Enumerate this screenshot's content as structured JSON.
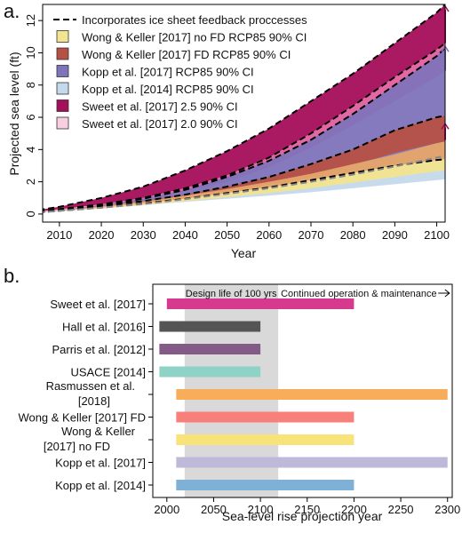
{
  "chart_data": [
    {
      "panel_label": "a.",
      "type": "area",
      "xlabel": "Year",
      "ylabel": "Projected sea level (ft)",
      "xlim": [
        2006,
        2102
      ],
      "ylim": [
        -0.5,
        13
      ],
      "xticks": [
        2010,
        2020,
        2030,
        2040,
        2050,
        2060,
        2070,
        2080,
        2090,
        2100
      ],
      "yticks": [
        0,
        2,
        4,
        6,
        8,
        10,
        12
      ],
      "grid": false,
      "legend_position": "top-left",
      "x": [
        2005,
        2010,
        2020,
        2030,
        2040,
        2050,
        2060,
        2070,
        2080,
        2090,
        2100,
        2102
      ],
      "series": [
        {
          "name": "Sweet et al. [2017] 2.5 90% CI",
          "color": "#a50e5a",
          "lower": [
            0.15,
            0.3,
            0.6,
            1.0,
            1.6,
            2.4,
            3.5,
            5.0,
            6.7,
            8.5,
            10.2,
            10.6
          ],
          "upper": [
            0.25,
            0.45,
            1.0,
            1.7,
            2.7,
            3.9,
            5.3,
            7.0,
            8.7,
            10.6,
            12.5,
            13.0
          ]
        },
        {
          "name": "Sweet et al. [2017] 2.0 90% CI",
          "color": "#e0609e",
          "lower": [
            0.15,
            0.28,
            0.55,
            0.9,
            1.4,
            2.0,
            2.9,
            4.1,
            5.5,
            7.0,
            8.5,
            8.9
          ],
          "upper": [
            0.15,
            0.3,
            0.6,
            1.0,
            1.6,
            2.4,
            3.5,
            5.0,
            6.7,
            8.5,
            10.2,
            10.6
          ]
        },
        {
          "name": "Kopp et al. [2017] RCP85 90% CI",
          "color": "#7f73ba",
          "lower": [
            0.1,
            0.18,
            0.35,
            0.55,
            0.8,
            1.1,
            1.4,
            1.75,
            2.1,
            2.5,
            2.9,
            3.0
          ],
          "upper": [
            0.12,
            0.25,
            0.55,
            0.95,
            1.5,
            2.3,
            3.3,
            4.6,
            6.2,
            8.0,
            9.8,
            10.3
          ]
        },
        {
          "name": "Wong & Keller [2017] FD RCP85 90% CI",
          "color": "#b55144",
          "lower": [
            0.1,
            0.2,
            0.4,
            0.65,
            0.95,
            1.3,
            1.7,
            2.3,
            3.0,
            3.8,
            4.4,
            4.5
          ],
          "upper": [
            0.1,
            0.22,
            0.5,
            0.8,
            1.2,
            1.7,
            2.3,
            3.1,
            4.0,
            5.2,
            6.0,
            6.1
          ]
        },
        {
          "name": "Kopp et al. [2014] RCP85 90% CI",
          "color": "#c5d9ec",
          "lower": [
            0.1,
            0.18,
            0.35,
            0.55,
            0.75,
            0.95,
            1.15,
            1.35,
            1.6,
            1.85,
            2.1,
            2.15
          ],
          "upper": [
            0.12,
            0.22,
            0.45,
            0.75,
            1.05,
            1.4,
            1.8,
            2.2,
            2.6,
            3.0,
            3.4,
            3.5
          ]
        },
        {
          "name": "Wong & Keller [2017] no FD RCP85 90% CI",
          "color": "#f3e48f",
          "lower": [
            0.1,
            0.18,
            0.35,
            0.55,
            0.8,
            1.05,
            1.3,
            1.6,
            1.95,
            2.3,
            2.65,
            2.7
          ],
          "upper": [
            0.1,
            0.2,
            0.4,
            0.65,
            0.95,
            1.3,
            1.7,
            2.1,
            2.55,
            3.0,
            3.3,
            3.4
          ]
        },
        {
          "name": "Wong & Keller [2017] no FD RCP85 90% CI",
          "color": "#e6a66a",
          "lower": [
            0.1,
            0.2,
            0.4,
            0.65,
            0.95,
            1.3,
            1.65,
            2.1,
            2.55,
            3.0,
            3.35,
            3.4
          ],
          "upper": [
            0.1,
            0.22,
            0.48,
            0.78,
            1.15,
            1.55,
            2.0,
            2.5,
            3.1,
            3.7,
            4.4,
            4.5
          ],
          "legend": false
        }
      ],
      "feedback_lines": [
        {
          "name": "Incorporates ice sheet feedback proccesses",
          "color": "#000000",
          "values": [
            0.25,
            0.45,
            1.0,
            1.7,
            2.7,
            3.9,
            5.3,
            7.0,
            8.7,
            10.6,
            12.5,
            13.0
          ]
        },
        {
          "color": "#000000",
          "values": [
            0.15,
            0.3,
            0.6,
            1.0,
            1.6,
            2.4,
            3.5,
            5.0,
            6.7,
            8.5,
            10.2,
            10.6
          ]
        },
        {
          "color": "#000000",
          "values": [
            0.12,
            0.25,
            0.55,
            0.95,
            1.5,
            2.3,
            3.3,
            4.6,
            6.2,
            8.0,
            9.8,
            10.3
          ]
        },
        {
          "color": "#000000",
          "values": [
            0.1,
            0.22,
            0.5,
            0.8,
            1.2,
            1.7,
            2.3,
            3.1,
            4.0,
            5.2,
            6.0,
            6.1
          ]
        },
        {
          "color": "#000000",
          "values": [
            0.1,
            0.2,
            0.4,
            0.65,
            0.95,
            1.3,
            1.65,
            2.1,
            2.55,
            3.0,
            3.35,
            3.4
          ]
        },
        {
          "color": "#888888",
          "values": [
            0.1,
            0.2,
            0.4,
            0.62,
            0.92,
            1.25,
            1.6,
            2.0,
            2.45,
            2.95,
            3.5,
            3.6
          ]
        }
      ],
      "arrows": [
        {
          "x": 2102,
          "from": 10.6,
          "to": 12.9,
          "color": "#a50e5a"
        },
        {
          "x": 2102,
          "from": 8.9,
          "to": 10.4,
          "color": "#7f73ba"
        },
        {
          "x": 2102,
          "from": 4.6,
          "to": 5.6,
          "color": "#a50e5a"
        }
      ],
      "legend": [
        {
          "label": "Incorporates ice sheet feedback proccesses",
          "kind": "dash"
        },
        {
          "label": "Wong & Keller [2017] no FD RCP85 90% CI",
          "color": "#f3e48f"
        },
        {
          "label": "Wong & Keller [2017] FD RCP85 90% CI",
          "color": "#b55144"
        },
        {
          "label": "Kopp et al. [2017] RCP85 90% CI",
          "color": "#7f73ba"
        },
        {
          "label": "Kopp et al. [2014] RCP85 90% CI",
          "color": "#c5d9ec"
        },
        {
          "label": "Sweet et al. [2017] 2.5 90% CI",
          "color": "#a50e5a"
        },
        {
          "label": "Sweet et al. [2017] 2.0 90% CI",
          "color": "#f7cfe0"
        }
      ]
    },
    {
      "panel_label": "b.",
      "type": "bar",
      "orientation": "horizontal",
      "xlabel": "Sea-level rise projection year",
      "xlim": [
        1985,
        2305
      ],
      "xticks": [
        2000,
        2050,
        2100,
        2150,
        2200,
        2250,
        2300
      ],
      "shade_range": [
        2019,
        2119
      ],
      "shade_color": "#d9d9d9",
      "annotations": {
        "design_life": "Design life of 100 yrs",
        "continued": "Continued operation & maintenance"
      },
      "categories": [
        [
          "Sweet et al. [2017]"
        ],
        [
          "Hall et al. [2016]"
        ],
        [
          "Parris et al. [2012]"
        ],
        [
          "USACE [2014]"
        ],
        [
          "Rasmussen et al.",
          "[2018]"
        ],
        [
          "Wong & Keller [2017] FD"
        ],
        [
          "Wong & Keller",
          "[2017] no FD"
        ],
        [
          "Kopp et al. [2017]"
        ],
        [
          "Kopp et al. [2014]"
        ]
      ],
      "bars": [
        {
          "start": 2000,
          "end": 2200,
          "color": "#d63a8e"
        },
        {
          "start": 1992,
          "end": 2100,
          "color": "#555555"
        },
        {
          "start": 1992,
          "end": 2100,
          "color": "#845a86"
        },
        {
          "start": 1992,
          "end": 2100,
          "color": "#8fd3c6"
        },
        {
          "start": 2010,
          "end": 2300,
          "color": "#f8ad5b"
        },
        {
          "start": 2010,
          "end": 2200,
          "color": "#f8807a"
        },
        {
          "start": 2010,
          "end": 2200,
          "color": "#f7e37a"
        },
        {
          "start": 2010,
          "end": 2300,
          "color": "#bfb9d9"
        },
        {
          "start": 2010,
          "end": 2200,
          "color": "#7fb1d6"
        }
      ]
    }
  ]
}
